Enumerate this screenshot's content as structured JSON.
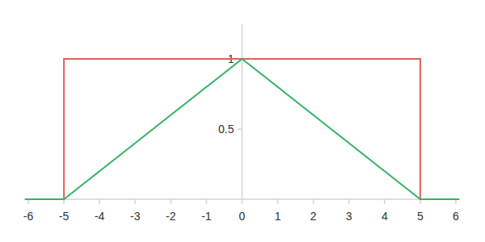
{
  "chart_data": {
    "type": "line",
    "xlim": [
      -6.1,
      6.1
    ],
    "ylim": [
      0,
      1.25
    ],
    "xticks": [
      -6,
      -5,
      -4,
      -3,
      -2,
      -1,
      0,
      1,
      2,
      3,
      4,
      5,
      6
    ],
    "yticks": [
      0.5,
      1
    ],
    "grid": false,
    "series": [
      {
        "color": "#e06060",
        "x": [
          -6.1,
          -5,
          -5,
          5,
          5,
          6.1
        ],
        "values": [
          0,
          0,
          1,
          1,
          0,
          0
        ]
      },
      {
        "color": "#33b366",
        "x": [
          -6.1,
          -5,
          0,
          5,
          6.1
        ],
        "values": [
          0,
          0,
          1,
          0,
          0
        ]
      }
    ]
  }
}
